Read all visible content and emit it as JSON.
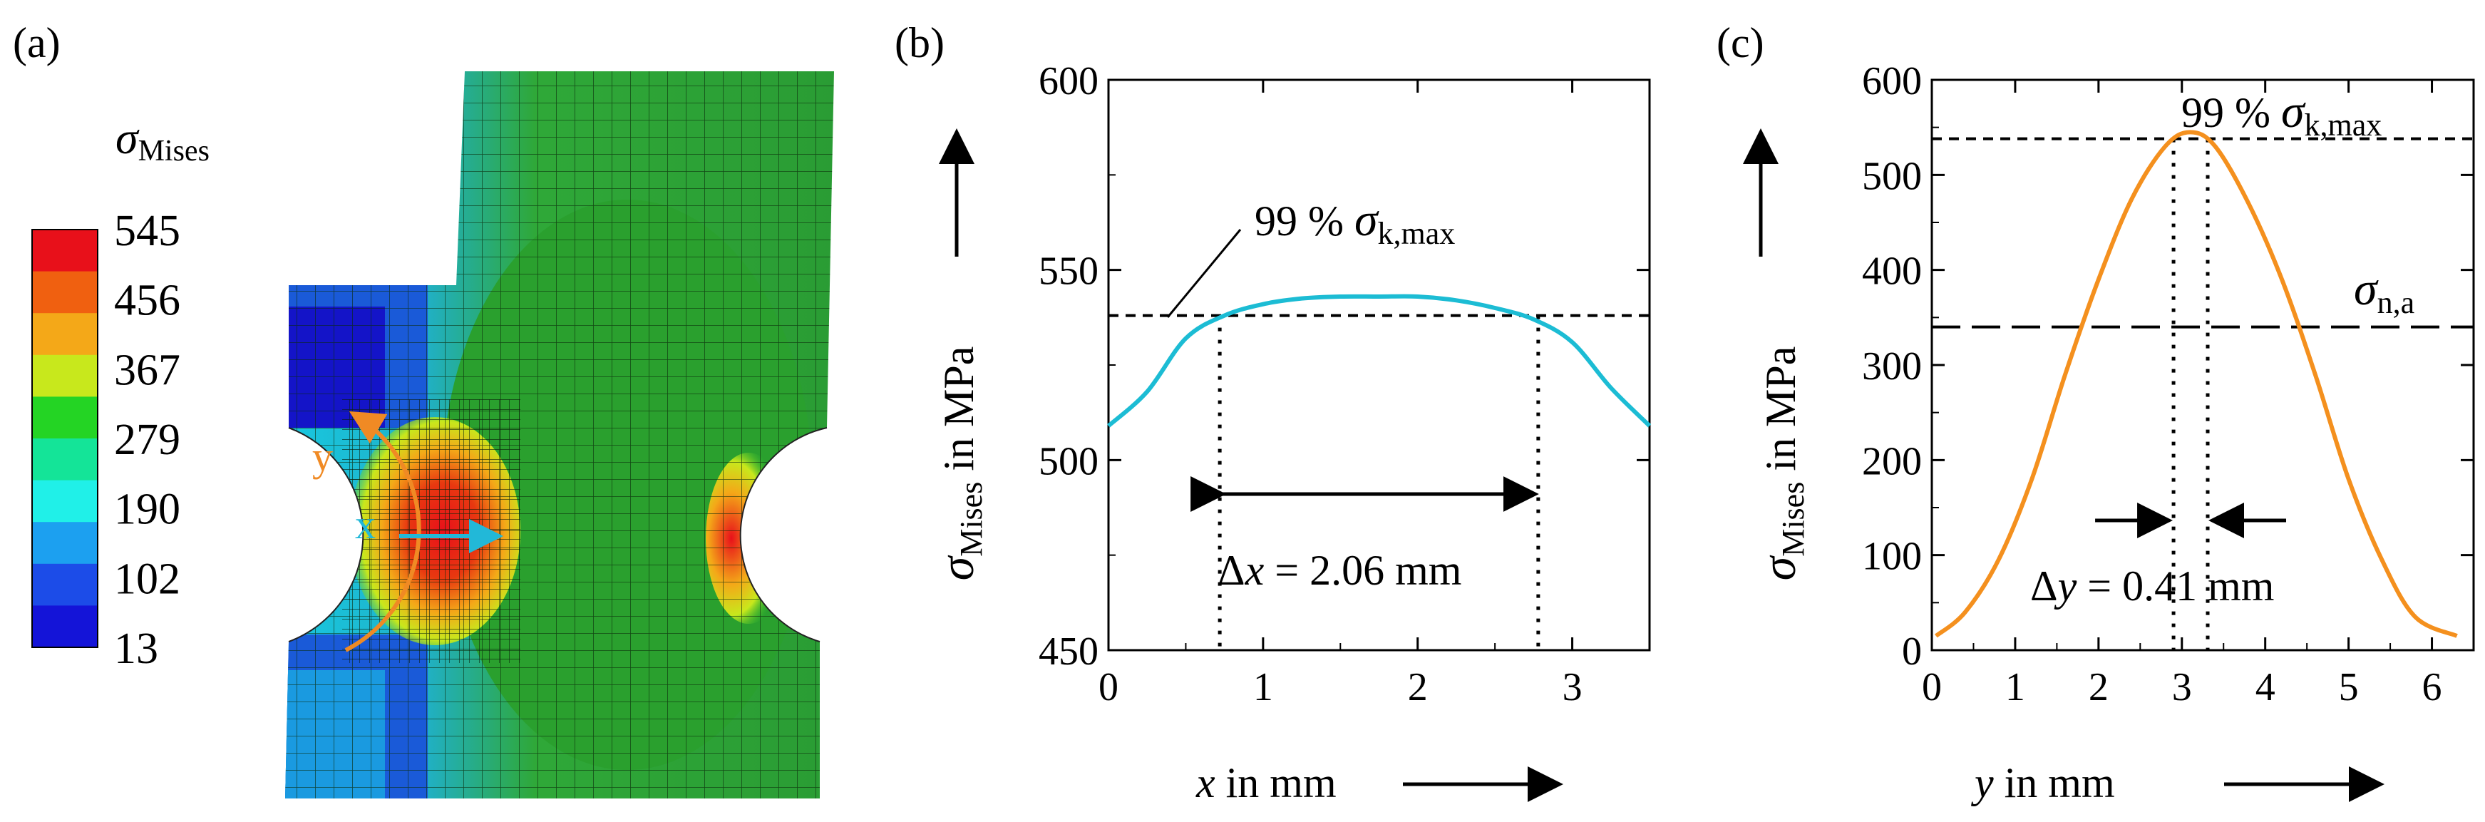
{
  "panel_a": {
    "label": "(a)",
    "legend_symbol": "σ",
    "legend_subscript": "Mises",
    "legend_values": [
      "545",
      "456",
      "367",
      "279",
      "190",
      "102",
      "13"
    ],
    "legend_colors": [
      "#e8101a",
      "#f06010",
      "#f4a818",
      "#c8e81c",
      "#24d424",
      "#14e498",
      "#20f0e8",
      "#1ca0f0",
      "#1c4ce8",
      "#1414d8"
    ],
    "axis_x_label": "x",
    "axis_y_label": "y",
    "axis_x_color": "#22b8d8",
    "axis_y_color": "#f08a24",
    "mesh_color": "#36a838"
  },
  "panel_b": {
    "label": "(b)",
    "ylabel_symbol": "σ",
    "ylabel_subscript": "Mises",
    "ylabel_suffix": " in MPa",
    "xlabel_symbol": "x",
    "xlabel_suffix": " in mm",
    "annotation_pct": "99 % ",
    "annotation_symbol": "σ",
    "annotation_subscript": "k,max",
    "delta_label_prefix": "Δ",
    "delta_label_symbol": "x",
    "delta_label_value": " = 2.06 mm"
  },
  "panel_c": {
    "label": "(c)",
    "ylabel_symbol": "σ",
    "ylabel_subscript": "Mises",
    "ylabel_suffix": " in MPa",
    "xlabel_symbol": "y",
    "xlabel_suffix": " in mm",
    "annotation_pct": "99 % ",
    "annotation_symbol": "σ",
    "annotation_subscript": "k,max",
    "sigma_na_symbol": "σ",
    "sigma_na_subscript": "n,a",
    "delta_label_prefix": "Δ",
    "delta_label_symbol": "y",
    "delta_label_value": " = 0.41 mm"
  },
  "chart_data": [
    {
      "type": "line",
      "panel": "b",
      "title": "",
      "xlabel": "x in mm",
      "ylabel": "σMises in MPa",
      "xlim": [
        0,
        3.5
      ],
      "ylim": [
        450,
        600
      ],
      "xticks": [
        "0",
        "1",
        "2",
        "3"
      ],
      "yticks": [
        "450",
        "500",
        "550",
        "600"
      ],
      "color": "#1cbcd4",
      "series": [
        {
          "name": "σMises",
          "x": [
            0,
            0.25,
            0.5,
            0.75,
            1.0,
            1.25,
            1.5,
            1.75,
            2.0,
            2.25,
            2.5,
            2.75,
            3.0,
            3.25,
            3.5
          ],
          "y": [
            509,
            518,
            532,
            538,
            541,
            542.5,
            543,
            543,
            543,
            542,
            540,
            537,
            531,
            519,
            509
          ]
        }
      ],
      "reference_line": {
        "label": "99 % σk,max",
        "y": 538
      },
      "delta_start": 0.72,
      "delta_end": 2.78,
      "delta_text": "Δx = 2.06 mm"
    },
    {
      "type": "line",
      "panel": "c",
      "title": "",
      "xlabel": "y in mm",
      "ylabel": "σMises in MPa",
      "xlim": [
        0,
        6.5
      ],
      "ylim": [
        0,
        600
      ],
      "xticks": [
        "0",
        "1",
        "2",
        "3",
        "4",
        "5",
        "6"
      ],
      "yticks": [
        "0",
        "100",
        "200",
        "300",
        "400",
        "500",
        "600"
      ],
      "color": "#f4901e",
      "series": [
        {
          "name": "σMises",
          "x": [
            0.05,
            0.4,
            0.8,
            1.2,
            1.6,
            2.0,
            2.4,
            2.8,
            3.1,
            3.4,
            3.8,
            4.2,
            4.6,
            5.0,
            5.4,
            5.8,
            6.3
          ],
          "y": [
            15,
            40,
            95,
            180,
            290,
            390,
            475,
            530,
            545,
            530,
            470,
            390,
            290,
            180,
            95,
            35,
            15
          ]
        }
      ],
      "reference_line": {
        "label": "99 % σk,max",
        "y": 538
      },
      "sigma_na_line": {
        "label": "σn,a",
        "y": 340
      },
      "delta_start": 2.9,
      "delta_end": 3.31,
      "delta_text": "Δy = 0.41 mm"
    }
  ]
}
